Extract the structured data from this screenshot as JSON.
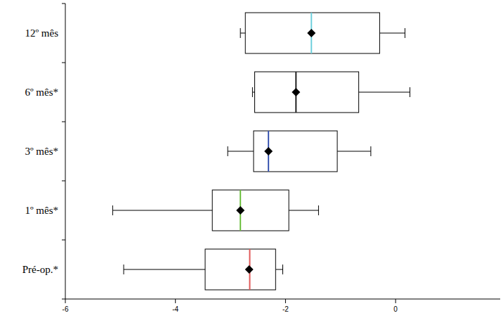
{
  "chart_data": {
    "type": "box",
    "orientation": "horizontal",
    "categories": [
      "Pré-op.*",
      "1º mês*",
      "3º mês*",
      "6º mês*",
      "12º mês"
    ],
    "min": [
      -4.94,
      -5.14,
      -3.05,
      -2.6,
      -2.82
    ],
    "q1": [
      -3.46,
      -3.33,
      -2.58,
      -2.56,
      -2.73
    ],
    "median": [
      -2.65,
      -2.82,
      -2.31,
      -1.81,
      -1.53
    ],
    "q3": [
      -2.18,
      -1.94,
      -1.06,
      -0.67,
      -0.29
    ],
    "max": [
      -2.05,
      -1.4,
      -0.45,
      0.26,
      0.17
    ],
    "mean": [
      -2.66,
      -2.82,
      -2.31,
      -1.81,
      -1.53
    ],
    "colors": [
      "#e05a5a",
      "#6cbf3f",
      "#3a55b0",
      "#222222",
      "#6fd0dc"
    ],
    "xlim": [
      -6,
      1.9
    ],
    "xticks": [
      -6,
      -4,
      -2,
      0
    ]
  }
}
